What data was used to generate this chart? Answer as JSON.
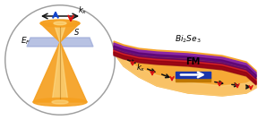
{
  "bg_color": "#ffffff",
  "circle_border": "#a0a0a0",
  "circle_fill": "#ffffff",
  "cone_orange": "#f5a020",
  "cone_light": "#fde090",
  "plane_color": "#9aa8d8",
  "plane_alpha": 0.7,
  "arrow_black": "#111111",
  "arrow_red": "#dd1111",
  "arrow_blue": "#1144cc",
  "ti_top_color": "#f5a020",
  "ti_top_light": "#fbd080",
  "ti_side_color": "#e09020",
  "stripe_purple": "#8822aa",
  "stripe_crimson": "#cc1122",
  "fm_blue": "#1a35aa",
  "fm_gold": "#c07800",
  "fm_label": "FM",
  "kx_label": "k_x",
  "s_label": "S",
  "ef_label": "E_F",
  "bi2se3_label": "Bi_2Se_3"
}
